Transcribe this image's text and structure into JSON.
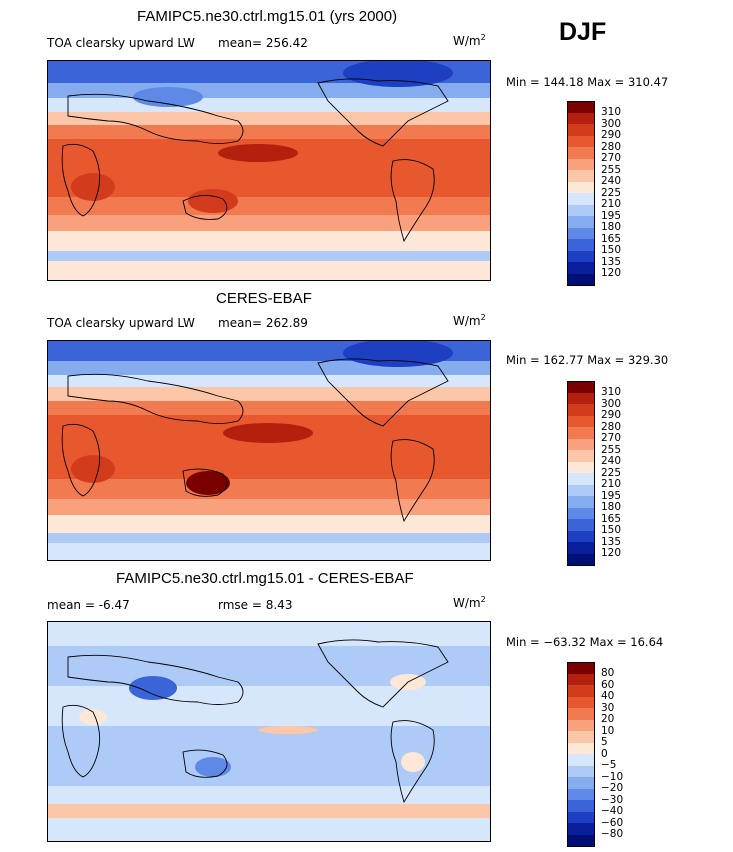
{
  "season": "DJF",
  "panels": [
    {
      "id": "model",
      "title": "FAMIPC5.ne30.ctrl.mg15.01 (yrs 2000)",
      "variable": "TOA clearsky upward LW",
      "stat": "mean= 256.42",
      "stat2": "",
      "units_base": "W/m",
      "units_sup": "2",
      "minmax": "Min = 144.18 Max = 310.47",
      "colorbar_labels": [
        "310",
        "300",
        "290",
        "280",
        "270",
        "255",
        "240",
        "225",
        "210",
        "195",
        "180",
        "165",
        "150",
        "135",
        "120"
      ],
      "colors": [
        "#7a0000",
        "#b3200e",
        "#d33b1d",
        "#e8582f",
        "#f27a51",
        "#f9a07c",
        "#fcc7a8",
        "#fde8d8",
        "#d6e6fb",
        "#aecbf7",
        "#86acf0",
        "#5e89e6",
        "#3a64d8",
        "#1d3fc2",
        "#0a1f9c",
        "#000f73"
      ]
    },
    {
      "id": "obs",
      "title": "CERES-EBAF",
      "variable": "TOA clearsky upward LW",
      "stat": "mean= 262.89",
      "stat2": "",
      "units_base": "W/m",
      "units_sup": "2",
      "minmax": "Min = 162.77 Max = 329.30",
      "colorbar_labels": [
        "310",
        "300",
        "290",
        "280",
        "270",
        "255",
        "240",
        "225",
        "210",
        "195",
        "180",
        "165",
        "150",
        "135",
        "120"
      ],
      "colors": [
        "#7a0000",
        "#b3200e",
        "#d33b1d",
        "#e8582f",
        "#f27a51",
        "#f9a07c",
        "#fcc7a8",
        "#fde8d8",
        "#d6e6fb",
        "#aecbf7",
        "#86acf0",
        "#5e89e6",
        "#3a64d8",
        "#1d3fc2",
        "#0a1f9c",
        "#000f73"
      ]
    },
    {
      "id": "diff",
      "title": "FAMIPC5.ne30.ctrl.mg15.01 - CERES-EBAF",
      "variable": "",
      "stat": "mean =   -6.47",
      "stat2": "rmse =    8.43",
      "units_base": "W/m",
      "units_sup": "2",
      "minmax": "Min = −63.32 Max =  16.64",
      "colorbar_labels": [
        "80",
        "60",
        "40",
        "30",
        "20",
        "10",
        "5",
        "0",
        "−5",
        "−10",
        "−20",
        "−30",
        "−40",
        "−60",
        "−80"
      ],
      "colors": [
        "#7a0000",
        "#b3200e",
        "#d33b1d",
        "#e8582f",
        "#f27a51",
        "#f9a07c",
        "#fcc7a8",
        "#fde8d8",
        "#d6e6fb",
        "#aecbf7",
        "#86acf0",
        "#5e89e6",
        "#3a64d8",
        "#1d3fc2",
        "#0a1f9c",
        "#000f73"
      ]
    }
  ],
  "chart_data": [
    {
      "type": "heatmap",
      "title": "FAMIPC5.ne30.ctrl.mg15.01 (yrs 2000)",
      "subtitle": "TOA clearsky upward LW",
      "units": "W/m2",
      "mean": 256.42,
      "min": 144.18,
      "max": 310.47,
      "levels": [
        120,
        135,
        150,
        165,
        180,
        195,
        210,
        225,
        240,
        255,
        270,
        280,
        290,
        300,
        310
      ]
    },
    {
      "type": "heatmap",
      "title": "CERES-EBAF",
      "subtitle": "TOA clearsky upward LW",
      "units": "W/m2",
      "mean": 262.89,
      "min": 162.77,
      "max": 329.3,
      "levels": [
        120,
        135,
        150,
        165,
        180,
        195,
        210,
        225,
        240,
        255,
        270,
        280,
        290,
        300,
        310
      ]
    },
    {
      "type": "heatmap",
      "title": "FAMIPC5.ne30.ctrl.mg15.01 - CERES-EBAF",
      "units": "W/m2",
      "mean": -6.47,
      "rmse": 8.43,
      "min": -63.32,
      "max": 16.64,
      "levels": [
        -80,
        -60,
        -40,
        -30,
        -20,
        -10,
        -5,
        0,
        5,
        10,
        20,
        30,
        40,
        60,
        80
      ]
    }
  ]
}
